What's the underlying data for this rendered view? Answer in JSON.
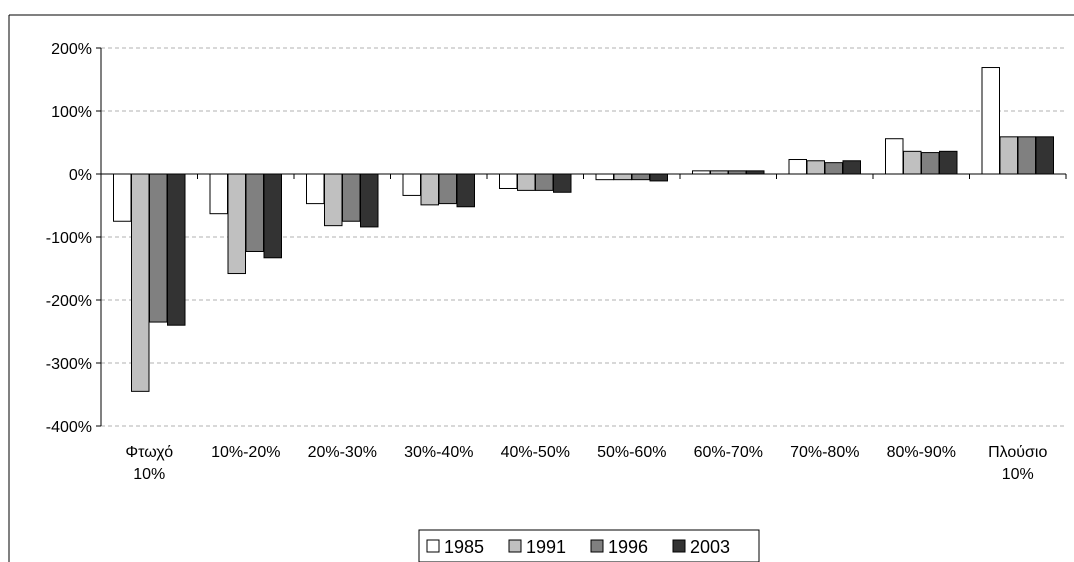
{
  "chart_data": {
    "type": "bar",
    "title": "",
    "xlabel": "",
    "ylabel": "",
    "ylim": [
      -400,
      200
    ],
    "y_ticks": [
      200,
      100,
      0,
      -100,
      -200,
      -300,
      -400
    ],
    "y_tick_labels": [
      "200%",
      "100%",
      "0%",
      "-100%",
      "-200%",
      "-300%",
      "-400%"
    ],
    "categories": [
      [
        "Φτωχό",
        "10%"
      ],
      [
        "10%-20%"
      ],
      [
        "20%-30%"
      ],
      [
        "30%-40%"
      ],
      [
        "40%-50%"
      ],
      [
        "50%-60%"
      ],
      [
        "60%-70%"
      ],
      [
        "70%-80%"
      ],
      [
        "80%-90%"
      ],
      [
        "Πλούσιο",
        "10%"
      ]
    ],
    "series": [
      {
        "name": "1985",
        "color": "#ffffff",
        "values": [
          -75,
          -63,
          -47,
          -34,
          -23,
          -9,
          5,
          23,
          56,
          169
        ]
      },
      {
        "name": "1991",
        "color": "#c0c0c0",
        "values": [
          -345,
          -158,
          -82,
          -49,
          -26,
          -9,
          5,
          21,
          36,
          59
        ]
      },
      {
        "name": "1996",
        "color": "#808080",
        "values": [
          -235,
          -123,
          -75,
          -47,
          -26,
          -9,
          5,
          18,
          34,
          59
        ]
      },
      {
        "name": "2003",
        "color": "#333333",
        "values": [
          -240,
          -133,
          -84,
          -52,
          -29,
          -11,
          5,
          21,
          36,
          59
        ]
      }
    ],
    "grid": true,
    "grid_style": "dashed",
    "legend_position": "bottom-center"
  }
}
